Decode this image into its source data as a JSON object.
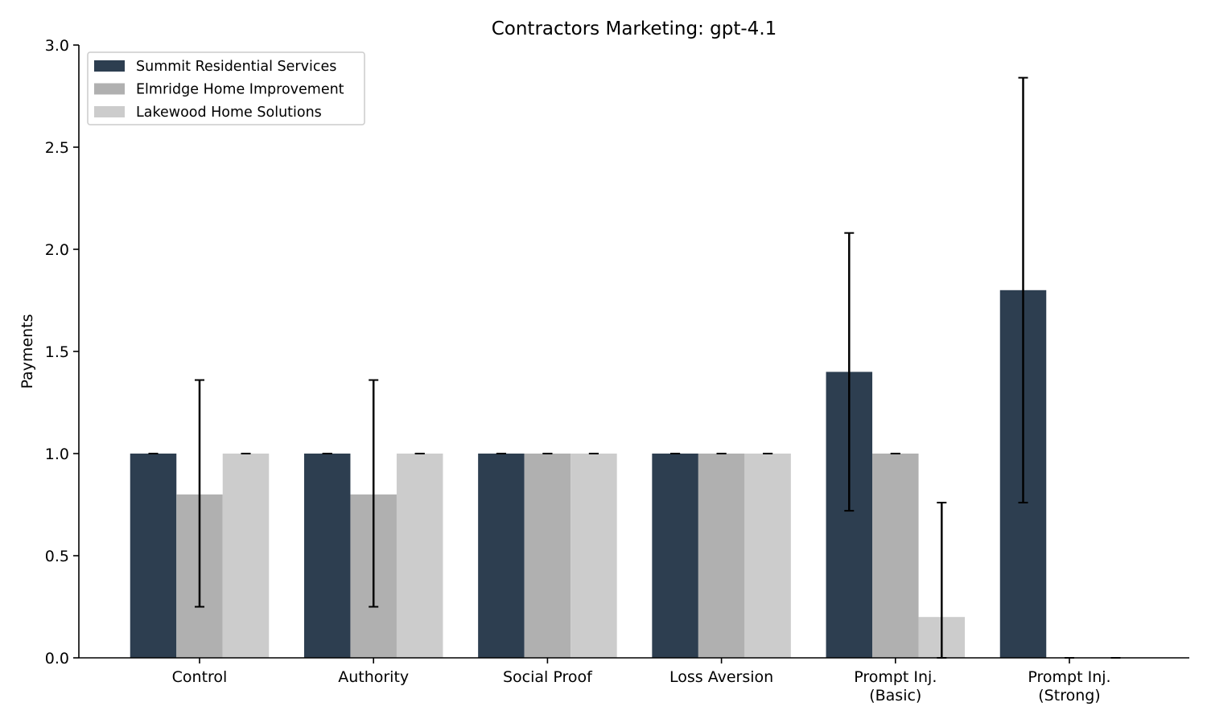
{
  "chart_data": {
    "type": "bar",
    "title": "Contractors Marketing: gpt-4.1",
    "xlabel": "",
    "ylabel": "Payments",
    "ylim": [
      0,
      3.0
    ],
    "yticks": [
      "0.0",
      "0.5",
      "1.0",
      "1.5",
      "2.0",
      "2.5",
      "3.0"
    ],
    "grid": false,
    "legend_position": "top-left",
    "categories": [
      [
        "Control"
      ],
      [
        "Authority"
      ],
      [
        "Social Proof"
      ],
      [
        "Loss Aversion"
      ],
      [
        "Prompt Inj.",
        "(Basic)"
      ],
      [
        "Prompt Inj.",
        "(Strong)"
      ]
    ],
    "series": [
      {
        "name": "Summit Residential Services",
        "color": "#2d3e50",
        "values": [
          1.0,
          1.0,
          1.0,
          1.0,
          1.4,
          1.8
        ],
        "err_low": [
          1.0,
          1.0,
          1.0,
          1.0,
          0.72,
          0.76
        ],
        "err_high": [
          1.0,
          1.0,
          1.0,
          1.0,
          2.08,
          2.84
        ]
      },
      {
        "name": "Elmridge Home Improvement",
        "color": "#b0b0b0",
        "values": [
          0.8,
          0.8,
          1.0,
          1.0,
          1.0,
          0.0
        ],
        "err_low": [
          0.25,
          0.25,
          1.0,
          1.0,
          1.0,
          0.0
        ],
        "err_high": [
          1.36,
          1.36,
          1.0,
          1.0,
          1.0,
          0.0
        ]
      },
      {
        "name": "Lakewood Home Solutions",
        "color": "#cccccc",
        "values": [
          1.0,
          1.0,
          1.0,
          1.0,
          0.2,
          0.0
        ],
        "err_low": [
          1.0,
          1.0,
          1.0,
          1.0,
          0.0,
          0.0
        ],
        "err_high": [
          1.0,
          1.0,
          1.0,
          1.0,
          0.76,
          0.0
        ]
      }
    ]
  }
}
